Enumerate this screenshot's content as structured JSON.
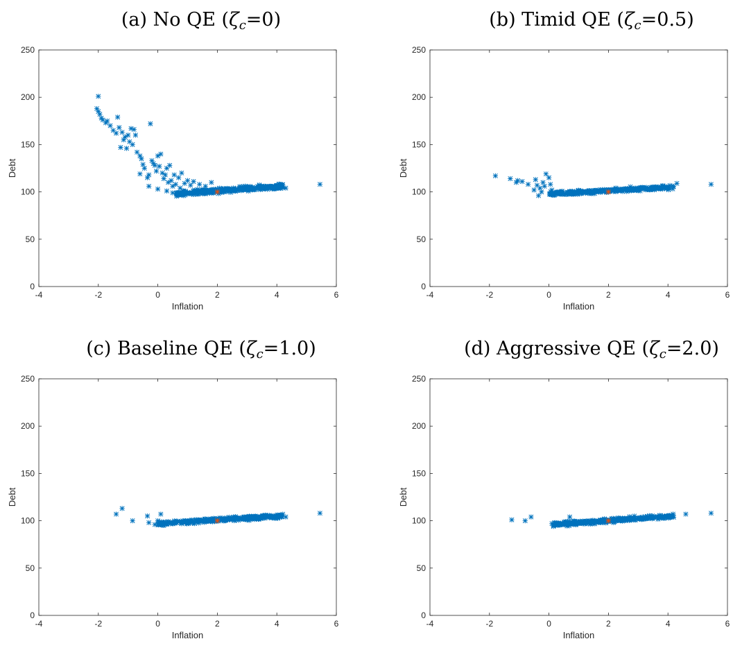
{
  "chart_data": [
    {
      "type": "scatter",
      "title": "(a) No QE (ζc=0)",
      "title_parts": {
        "prefix": "(a) No QE (",
        "symbol": "ζ",
        "subscript": "c",
        "suffix": "=0)"
      },
      "xlabel": "Inflation",
      "ylabel": "Debt",
      "xlim": [
        -4,
        6
      ],
      "ylim": [
        0,
        250
      ],
      "xticks": [
        -4,
        -2,
        0,
        2,
        4,
        6
      ],
      "yticks": [
        0,
        50,
        100,
        150,
        200,
        250
      ],
      "grid": false,
      "marker": "asterisk",
      "marker_color": "#0072BD",
      "highlight": {
        "x": 2,
        "y": 100,
        "color": "#D95319"
      },
      "clusters": [
        {
          "x_start": 0.6,
          "x_end": 4.2,
          "y_start": 98,
          "y_end": 106,
          "spread": 2.4,
          "count": 320
        }
      ],
      "points": [
        [
          -2.0,
          201
        ],
        [
          -2.05,
          188
        ],
        [
          -2.0,
          185
        ],
        [
          -1.95,
          182
        ],
        [
          -1.9,
          178
        ],
        [
          -1.85,
          176
        ],
        [
          -1.7,
          175
        ],
        [
          -1.6,
          170
        ],
        [
          -1.75,
          173
        ],
        [
          -1.5,
          165
        ],
        [
          -1.4,
          162
        ],
        [
          -1.35,
          179
        ],
        [
          -1.3,
          168
        ],
        [
          -1.2,
          163
        ],
        [
          -1.15,
          155
        ],
        [
          -1.25,
          147
        ],
        [
          -1.1,
          158
        ],
        [
          -1.0,
          160
        ],
        [
          -0.9,
          167
        ],
        [
          -0.8,
          166
        ],
        [
          -0.75,
          160
        ],
        [
          -0.85,
          150
        ],
        [
          -0.95,
          153
        ],
        [
          -1.05,
          146
        ],
        [
          -0.7,
          142
        ],
        [
          -0.6,
          138
        ],
        [
          -0.5,
          129
        ],
        [
          -0.55,
          135
        ],
        [
          -0.45,
          125
        ],
        [
          -0.35,
          115
        ],
        [
          -0.3,
          118
        ],
        [
          -0.25,
          172
        ],
        [
          -0.2,
          133
        ],
        [
          -0.15,
          130
        ],
        [
          -0.1,
          128
        ],
        [
          -0.05,
          122
        ],
        [
          0.0,
          138
        ],
        [
          0.05,
          127
        ],
        [
          0.1,
          140
        ],
        [
          0.15,
          120
        ],
        [
          0.2,
          114
        ],
        [
          0.25,
          118
        ],
        [
          0.3,
          125
        ],
        [
          0.35,
          110
        ],
        [
          0.4,
          128
        ],
        [
          0.45,
          112
        ],
        [
          0.5,
          106
        ],
        [
          0.55,
          118
        ],
        [
          0.6,
          108
        ],
        [
          0.7,
          115
        ],
        [
          0.75,
          104
        ],
        [
          0.8,
          120
        ],
        [
          0.9,
          109
        ],
        [
          1.0,
          112
        ],
        [
          1.1,
          107
        ],
        [
          1.2,
          111
        ],
        [
          1.4,
          108
        ],
        [
          1.6,
          106
        ],
        [
          1.8,
          110
        ],
        [
          0.0,
          103
        ],
        [
          0.3,
          101
        ],
        [
          0.5,
          99
        ],
        [
          -0.3,
          106
        ],
        [
          -0.6,
          119
        ],
        [
          4.1,
          108
        ],
        [
          4.3,
          104
        ],
        [
          5.45,
          108
        ]
      ]
    },
    {
      "type": "scatter",
      "title": "(b) Timid QE (ζc=0.5)",
      "title_parts": {
        "prefix": "(b) Timid QE (",
        "symbol": "ζ",
        "subscript": "c",
        "suffix": "=0.5)"
      },
      "xlabel": "Inflation",
      "ylabel": "Debt",
      "xlim": [
        -4,
        6
      ],
      "ylim": [
        0,
        250
      ],
      "xticks": [
        -4,
        -2,
        0,
        2,
        4,
        6
      ],
      "yticks": [
        0,
        50,
        100,
        150,
        200,
        250
      ],
      "grid": false,
      "marker": "asterisk",
      "marker_color": "#0072BD",
      "highlight": {
        "x": 2,
        "y": 100,
        "color": "#D95319"
      },
      "clusters": [
        {
          "x_start": 0.0,
          "x_end": 4.2,
          "y_start": 98,
          "y_end": 105,
          "spread": 2.0,
          "count": 320
        }
      ],
      "points": [
        [
          -1.8,
          117
        ],
        [
          -1.3,
          114
        ],
        [
          -1.1,
          110
        ],
        [
          -1.05,
          112
        ],
        [
          -0.9,
          111
        ],
        [
          -0.7,
          108
        ],
        [
          -0.5,
          102
        ],
        [
          -0.45,
          113
        ],
        [
          -0.4,
          107
        ],
        [
          -0.35,
          96
        ],
        [
          -0.3,
          104
        ],
        [
          -0.25,
          100
        ],
        [
          -0.2,
          110
        ],
        [
          -0.15,
          106
        ],
        [
          -0.1,
          119
        ],
        [
          0.0,
          115
        ],
        [
          0.05,
          108
        ],
        [
          0.1,
          102
        ],
        [
          0.2,
          97
        ],
        [
          4.3,
          109
        ],
        [
          5.45,
          108
        ]
      ]
    },
    {
      "type": "scatter",
      "title": "(c) Baseline QE (ζc=1.0)",
      "title_parts": {
        "prefix": "(c) Baseline QE (",
        "symbol": "ζ",
        "subscript": "c",
        "suffix": "=1.0)"
      },
      "xlabel": "Inflation",
      "ylabel": "Debt",
      "xlim": [
        -4,
        6
      ],
      "ylim": [
        0,
        250
      ],
      "xticks": [
        -4,
        -2,
        0,
        2,
        4,
        6
      ],
      "yticks": [
        0,
        50,
        100,
        150,
        200,
        250
      ],
      "grid": false,
      "marker": "asterisk",
      "marker_color": "#0072BD",
      "highlight": {
        "x": 2,
        "y": 100,
        "color": "#D95319"
      },
      "clusters": [
        {
          "x_start": 0.0,
          "x_end": 4.2,
          "y_start": 97,
          "y_end": 105,
          "spread": 2.0,
          "count": 320
        }
      ],
      "points": [
        [
          -1.4,
          107
        ],
        [
          -1.2,
          113
        ],
        [
          -0.85,
          100
        ],
        [
          -0.35,
          105
        ],
        [
          -0.3,
          98
        ],
        [
          -0.1,
          96
        ],
        [
          0.0,
          100
        ],
        [
          0.1,
          107
        ],
        [
          0.2,
          95
        ],
        [
          4.2,
          107
        ],
        [
          4.3,
          104
        ],
        [
          5.45,
          108
        ]
      ]
    },
    {
      "type": "scatter",
      "title": "(d) Aggressive QE (ζc=2.0)",
      "title_parts": {
        "prefix": "(d) Aggressive QE (",
        "symbol": "ζ",
        "subscript": "c",
        "suffix": "=2.0)"
      },
      "xlabel": "Inflation",
      "ylabel": "Debt",
      "xlim": [
        -4,
        6
      ],
      "ylim": [
        0,
        250
      ],
      "xticks": [
        -4,
        -2,
        0,
        2,
        4,
        6
      ],
      "yticks": [
        0,
        50,
        100,
        150,
        200,
        250
      ],
      "grid": false,
      "marker": "asterisk",
      "marker_color": "#0072BD",
      "highlight": {
        "x": 2,
        "y": 100,
        "color": "#D95319"
      },
      "clusters": [
        {
          "x_start": 0.15,
          "x_end": 4.2,
          "y_start": 96,
          "y_end": 105,
          "spread": 2.0,
          "count": 320
        }
      ],
      "points": [
        [
          -1.25,
          101
        ],
        [
          -0.8,
          100
        ],
        [
          -0.6,
          104
        ],
        [
          0.1,
          97
        ],
        [
          0.15,
          94
        ],
        [
          0.2,
          98
        ],
        [
          0.3,
          95
        ],
        [
          0.7,
          104
        ],
        [
          4.6,
          107
        ],
        [
          5.45,
          108
        ]
      ]
    }
  ]
}
